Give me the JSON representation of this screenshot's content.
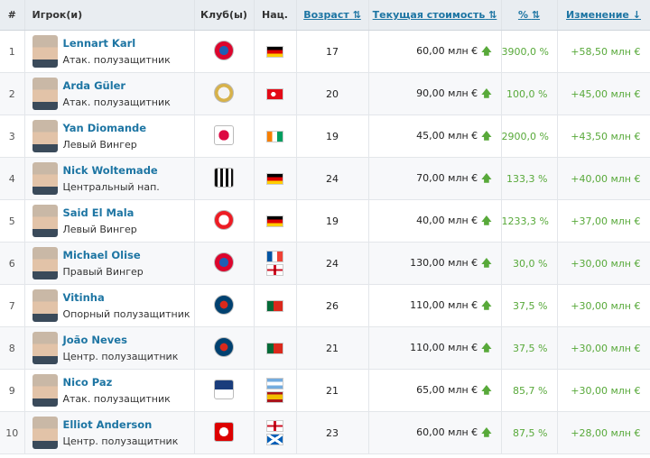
{
  "headers": {
    "rank": "#",
    "player": "Игрок(и)",
    "clubs": "Клуб(ы)",
    "nat": "Нац.",
    "age": "Возраст",
    "value": "Текущая стоимость",
    "pct": "%",
    "change": "Изменение",
    "sort_icon": "⇅",
    "down_icon": "↓"
  },
  "colors": {
    "accent": "#1d75a3",
    "positive": "#58a93a",
    "header_bg": "#e9edf1"
  },
  "players": [
    {
      "rank": "1",
      "name": "Lennart Karl",
      "pos": "Атак. полузащитник",
      "club": "bayern-crest",
      "flags": [
        "germany-flag"
      ],
      "age": "17",
      "value": "60,00 млн €",
      "pct": "3900,0 %",
      "change": "+58,50 млн €"
    },
    {
      "rank": "2",
      "name": "Arda Güler",
      "pos": "Атак. полузащитник",
      "club": "real-madrid-crest",
      "flags": [
        "turkey-flag"
      ],
      "age": "20",
      "value": "90,00 млн €",
      "pct": "100,0 %",
      "change": "+45,00 млн €"
    },
    {
      "rank": "3",
      "name": "Yan Diomande",
      "pos": "Левый Вингер",
      "club": "rb-leipzig-crest",
      "flags": [
        "ivory-coast-flag"
      ],
      "age": "19",
      "value": "45,00 млн €",
      "pct": "2900,0 %",
      "change": "+43,50 млн €"
    },
    {
      "rank": "4",
      "name": "Nick Woltemade",
      "pos": "Центральный нап.",
      "club": "newcastle-crest",
      "flags": [
        "germany-flag"
      ],
      "age": "24",
      "value": "70,00 млн €",
      "pct": "133,3 %",
      "change": "+40,00 млн €"
    },
    {
      "rank": "5",
      "name": "Said El Mala",
      "pos": "Левый Вингер",
      "club": "koln-crest",
      "flags": [
        "germany-flag"
      ],
      "age": "19",
      "value": "40,00 млн €",
      "pct": "1233,3 %",
      "change": "+37,00 млн €"
    },
    {
      "rank": "6",
      "name": "Michael Olise",
      "pos": "Правый Вингер",
      "club": "bayern-crest",
      "flags": [
        "france-flag",
        "england-flag"
      ],
      "age": "24",
      "value": "130,00 млн €",
      "pct": "30,0 %",
      "change": "+30,00 млн €"
    },
    {
      "rank": "7",
      "name": "Vitinha",
      "pos": "Опорный полузащитник",
      "club": "psg-crest",
      "flags": [
        "portugal-flag"
      ],
      "age": "26",
      "value": "110,00 млн €",
      "pct": "37,5 %",
      "change": "+30,00 млн €"
    },
    {
      "rank": "8",
      "name": "João Neves",
      "pos": "Центр. полузащитник",
      "club": "psg-crest",
      "flags": [
        "portugal-flag"
      ],
      "age": "21",
      "value": "110,00 млн €",
      "pct": "37,5 %",
      "change": "+30,00 млн €"
    },
    {
      "rank": "9",
      "name": "Nico Paz",
      "pos": "Атак. полузащитник",
      "club": "como-crest",
      "flags": [
        "argentina-flag",
        "spain-flag"
      ],
      "age": "21",
      "value": "65,00 млн €",
      "pct": "85,7 %",
      "change": "+30,00 млн €"
    },
    {
      "rank": "10",
      "name": "Elliot Anderson",
      "pos": "Центр. полузащитник",
      "club": "nottingham-forest-crest",
      "flags": [
        "england-flag",
        "scotland-flag"
      ],
      "age": "23",
      "value": "60,00 млн €",
      "pct": "87,5 %",
      "change": "+28,00 млн €"
    }
  ]
}
